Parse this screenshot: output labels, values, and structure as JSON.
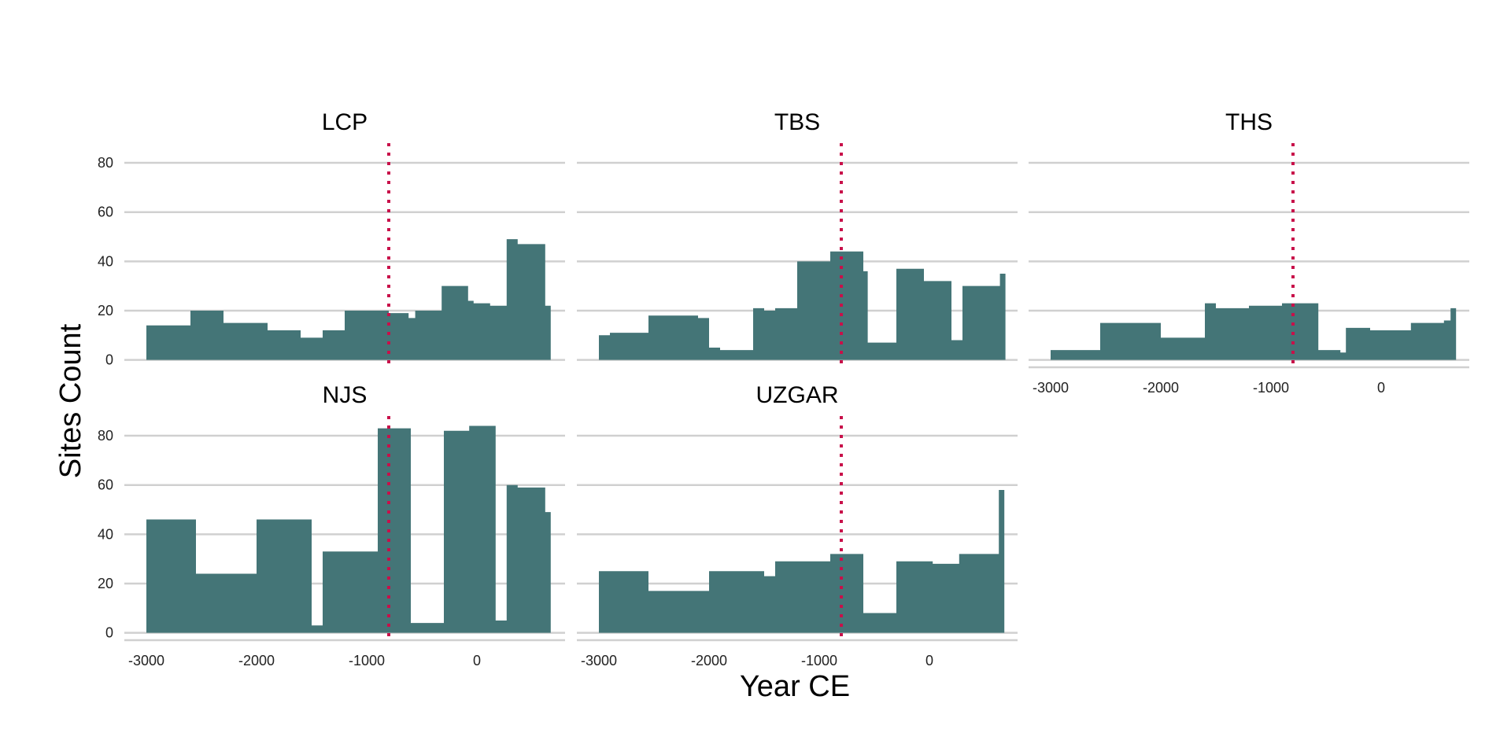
{
  "chart_data": {
    "type": "area",
    "xlabel": "Year CE",
    "ylabel": "Sites Count",
    "xlim": [
      -3200,
      800
    ],
    "ylim": [
      -3,
      88
    ],
    "xticks": [
      -3000,
      -2000,
      -1000,
      0
    ],
    "yticks": [
      0,
      20,
      40,
      60,
      80
    ],
    "grid": "horizontal",
    "fill_color": "#447577",
    "reference_line": {
      "x": -800,
      "color": "#C8104A",
      "style": "dotted"
    },
    "panels": [
      {
        "name": "LCP",
        "steps": [
          {
            "x0": -3000,
            "x1": -2600,
            "y": 14
          },
          {
            "x0": -2600,
            "x1": -2300,
            "y": 20
          },
          {
            "x0": -2300,
            "x1": -1900,
            "y": 15
          },
          {
            "x0": -1900,
            "x1": -1600,
            "y": 12
          },
          {
            "x0": -1600,
            "x1": -1400,
            "y": 9
          },
          {
            "x0": -1400,
            "x1": -1200,
            "y": 12
          },
          {
            "x0": -1200,
            "x1": -800,
            "y": 20
          },
          {
            "x0": -800,
            "x1": -620,
            "y": 19
          },
          {
            "x0": -620,
            "x1": -560,
            "y": 17
          },
          {
            "x0": -560,
            "x1": -320,
            "y": 20
          },
          {
            "x0": -320,
            "x1": -80,
            "y": 30
          },
          {
            "x0": -80,
            "x1": -30,
            "y": 24
          },
          {
            "x0": -30,
            "x1": 120,
            "y": 23
          },
          {
            "x0": 120,
            "x1": 270,
            "y": 22
          },
          {
            "x0": 270,
            "x1": 370,
            "y": 49
          },
          {
            "x0": 370,
            "x1": 620,
            "y": 47
          },
          {
            "x0": 620,
            "x1": 670,
            "y": 22
          }
        ]
      },
      {
        "name": "TBS",
        "steps": [
          {
            "x0": -3000,
            "x1": -2900,
            "y": 10
          },
          {
            "x0": -2900,
            "x1": -2550,
            "y": 11
          },
          {
            "x0": -2550,
            "x1": -2100,
            "y": 18
          },
          {
            "x0": -2100,
            "x1": -2000,
            "y": 17
          },
          {
            "x0": -2000,
            "x1": -1900,
            "y": 5
          },
          {
            "x0": -1900,
            "x1": -1600,
            "y": 4
          },
          {
            "x0": -1600,
            "x1": -1500,
            "y": 21
          },
          {
            "x0": -1500,
            "x1": -1400,
            "y": 20
          },
          {
            "x0": -1400,
            "x1": -1200,
            "y": 21
          },
          {
            "x0": -1200,
            "x1": -900,
            "y": 40
          },
          {
            "x0": -900,
            "x1": -600,
            "y": 44
          },
          {
            "x0": -600,
            "x1": -560,
            "y": 36
          },
          {
            "x0": -560,
            "x1": -300,
            "y": 7
          },
          {
            "x0": -300,
            "x1": -50,
            "y": 37
          },
          {
            "x0": -50,
            "x1": 200,
            "y": 32
          },
          {
            "x0": 200,
            "x1": 300,
            "y": 8
          },
          {
            "x0": 300,
            "x1": 640,
            "y": 30
          },
          {
            "x0": 640,
            "x1": 690,
            "y": 35
          }
        ]
      },
      {
        "name": "THS",
        "steps": [
          {
            "x0": -3000,
            "x1": -2550,
            "y": 4
          },
          {
            "x0": -2550,
            "x1": -2000,
            "y": 15
          },
          {
            "x0": -2000,
            "x1": -1600,
            "y": 9
          },
          {
            "x0": -1600,
            "x1": -1500,
            "y": 23
          },
          {
            "x0": -1500,
            "x1": -1200,
            "y": 21
          },
          {
            "x0": -1200,
            "x1": -900,
            "y": 22
          },
          {
            "x0": -900,
            "x1": -570,
            "y": 23
          },
          {
            "x0": -570,
            "x1": -370,
            "y": 4
          },
          {
            "x0": -370,
            "x1": -320,
            "y": 3
          },
          {
            "x0": -320,
            "x1": -100,
            "y": 13
          },
          {
            "x0": -100,
            "x1": 270,
            "y": 12
          },
          {
            "x0": 270,
            "x1": 570,
            "y": 15
          },
          {
            "x0": 570,
            "x1": 630,
            "y": 16
          },
          {
            "x0": 630,
            "x1": 680,
            "y": 21
          }
        ]
      },
      {
        "name": "NJS",
        "steps": [
          {
            "x0": -3000,
            "x1": -2550,
            "y": 46
          },
          {
            "x0": -2550,
            "x1": -2000,
            "y": 24
          },
          {
            "x0": -2000,
            "x1": -1500,
            "y": 46
          },
          {
            "x0": -1500,
            "x1": -1400,
            "y": 3
          },
          {
            "x0": -1400,
            "x1": -900,
            "y": 33
          },
          {
            "x0": -900,
            "x1": -600,
            "y": 83
          },
          {
            "x0": -600,
            "x1": -300,
            "y": 4
          },
          {
            "x0": -300,
            "x1": -70,
            "y": 82
          },
          {
            "x0": -70,
            "x1": 170,
            "y": 84
          },
          {
            "x0": 170,
            "x1": 270,
            "y": 5
          },
          {
            "x0": 270,
            "x1": 370,
            "y": 60
          },
          {
            "x0": 370,
            "x1": 620,
            "y": 59
          },
          {
            "x0": 620,
            "x1": 670,
            "y": 49
          }
        ]
      },
      {
        "name": "UZGAR",
        "steps": [
          {
            "x0": -3000,
            "x1": -2550,
            "y": 25
          },
          {
            "x0": -2550,
            "x1": -2000,
            "y": 17
          },
          {
            "x0": -2000,
            "x1": -1500,
            "y": 25
          },
          {
            "x0": -1500,
            "x1": -1400,
            "y": 23
          },
          {
            "x0": -1400,
            "x1": -900,
            "y": 29
          },
          {
            "x0": -900,
            "x1": -600,
            "y": 32
          },
          {
            "x0": -600,
            "x1": -300,
            "y": 8
          },
          {
            "x0": -300,
            "x1": 30,
            "y": 29
          },
          {
            "x0": 30,
            "x1": 270,
            "y": 28
          },
          {
            "x0": 270,
            "x1": 630,
            "y": 32
          },
          {
            "x0": 630,
            "x1": 680,
            "y": 58
          }
        ]
      }
    ]
  }
}
